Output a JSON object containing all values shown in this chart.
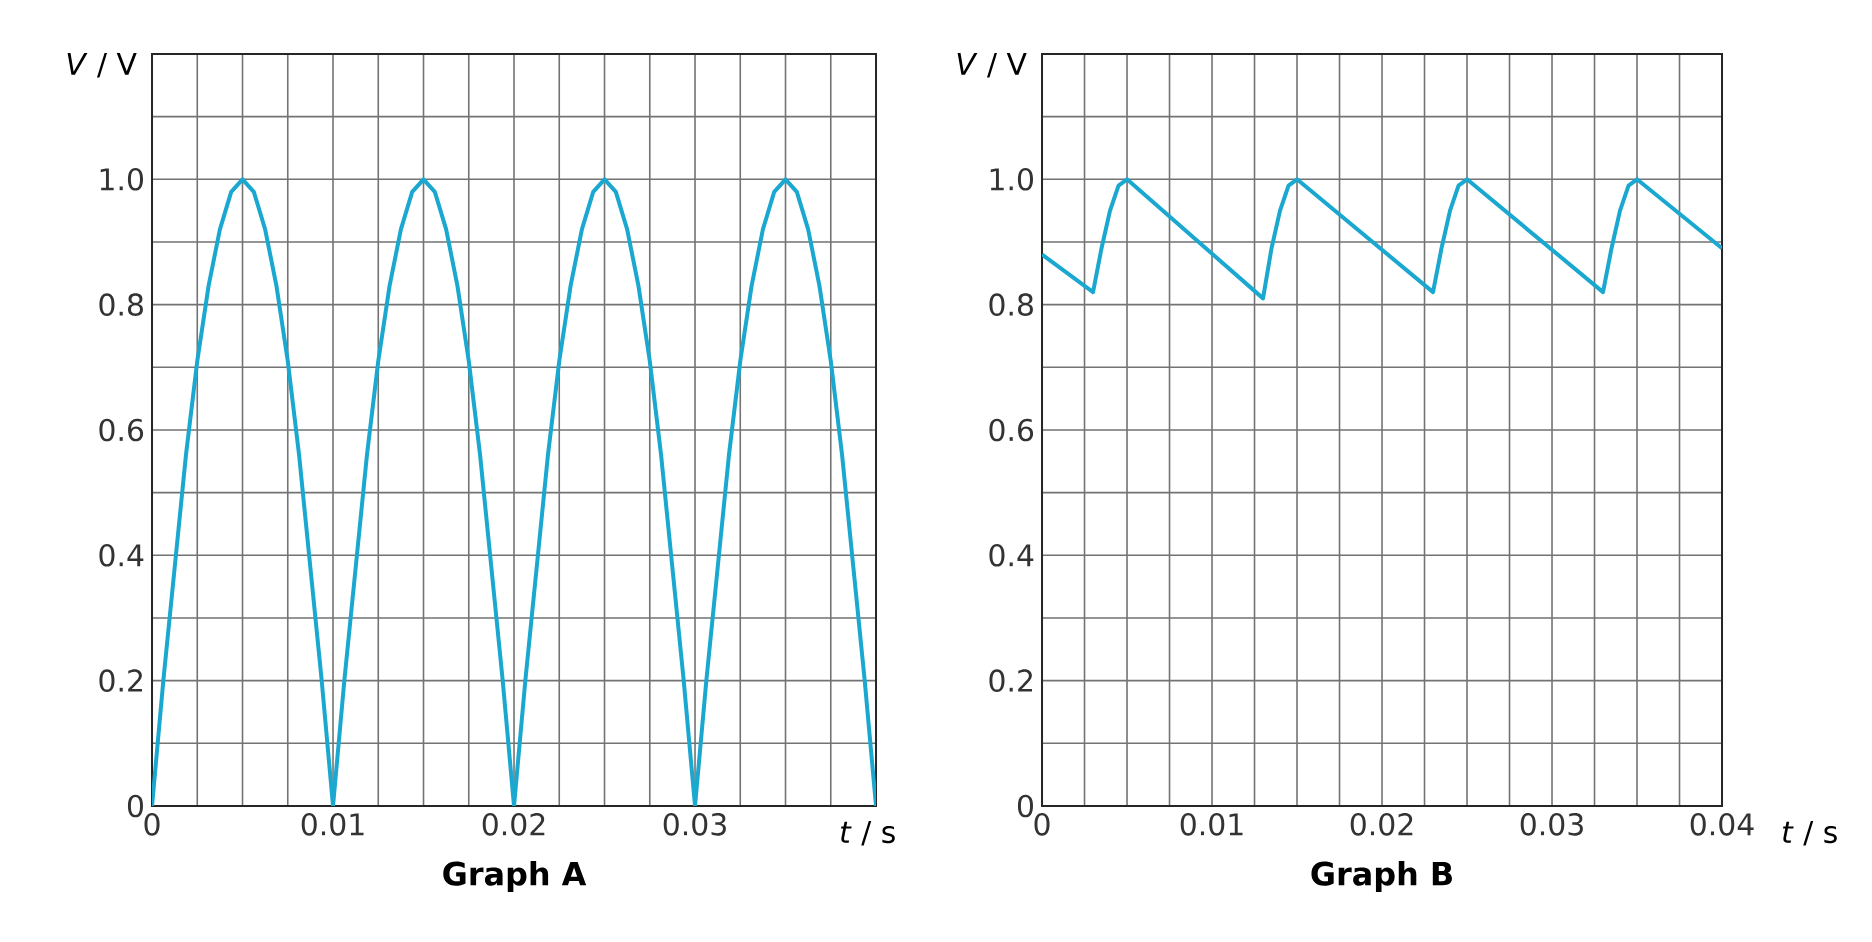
{
  "chart_data": [
    {
      "type": "line",
      "title": "Graph A",
      "xlabel": "*t* / s",
      "ylabel": "*V* / V",
      "color": "#1aa7d0",
      "grid": true,
      "xlim": [
        0,
        0.04
      ],
      "ylim": [
        0,
        1.2
      ],
      "xticks": [
        0,
        {
          "value": 0.0025,
          "label": null
        },
        {
          "value": 0.005,
          "label": null
        },
        {
          "value": 0.0075,
          "label": null
        },
        0.01,
        {
          "value": 0.0125,
          "label": null
        },
        {
          "value": 0.015,
          "label": null
        },
        {
          "value": 0.0175,
          "label": null
        },
        0.02,
        {
          "value": 0.0225,
          "label": null
        },
        {
          "value": 0.025,
          "label": null
        },
        {
          "value": 0.0275,
          "label": null
        },
        0.03,
        {
          "value": 0.0325,
          "label": null
        },
        {
          "value": 0.035,
          "label": null
        },
        {
          "value": 0.0375,
          "label": null
        }
      ],
      "yticks": [
        0,
        {
          "value": 0.1,
          "label": null
        },
        0.2,
        {
          "value": 0.3,
          "label": null
        },
        0.4,
        {
          "value": 0.5,
          "label": null
        },
        0.6,
        {
          "value": 0.7,
          "label": null
        },
        0.8,
        {
          "value": 0.9,
          "label": null
        },
        {
          "value": 1,
          "label": "1.0"
        },
        {
          "value": 1.1,
          "label": null
        }
      ],
      "x": [
        0,
        0.000625,
        0.00125,
        0.001875,
        0.0025,
        0.003125,
        0.00375,
        0.004375,
        0.005,
        0.005625,
        0.00625,
        0.006875,
        0.0075,
        0.008125,
        0.00875,
        0.009375,
        0.01,
        0.010625,
        0.01125,
        0.011875,
        0.0125,
        0.013125,
        0.01375,
        0.014375,
        0.015,
        0.015625,
        0.01625,
        0.016875,
        0.0175,
        0.018125,
        0.01875,
        0.019375,
        0.02,
        0.020625,
        0.02125,
        0.021875,
        0.0225,
        0.023125,
        0.02375,
        0.024375,
        0.025,
        0.025625,
        0.02625,
        0.026875,
        0.0275,
        0.028125,
        0.02875,
        0.029375,
        0.03,
        0.030625,
        0.03125,
        0.031875,
        0.0325,
        0.033125,
        0.03375,
        0.034375,
        0.035,
        0.035625,
        0.03625,
        0.036875,
        0.0375,
        0.038125,
        0.03875,
        0.039375,
        0.04
      ],
      "values": [
        0,
        0.2,
        0.38,
        0.56,
        0.71,
        0.83,
        0.92,
        0.98,
        1.0,
        0.98,
        0.92,
        0.83,
        0.71,
        0.56,
        0.38,
        0.2,
        0,
        0.2,
        0.38,
        0.56,
        0.71,
        0.83,
        0.92,
        0.98,
        1.0,
        0.98,
        0.92,
        0.83,
        0.71,
        0.56,
        0.38,
        0.2,
        0,
        0.2,
        0.38,
        0.56,
        0.71,
        0.83,
        0.92,
        0.98,
        1.0,
        0.98,
        0.92,
        0.83,
        0.71,
        0.56,
        0.38,
        0.2,
        0,
        0.2,
        0.38,
        0.56,
        0.71,
        0.83,
        0.92,
        0.98,
        1.0,
        0.98,
        0.92,
        0.83,
        0.71,
        0.56,
        0.38,
        0.2,
        0
      ]
    },
    {
      "type": "line",
      "title": "Graph B",
      "xlabel": "*t* / s",
      "ylabel": "*V* / V",
      "color": "#1aa7d0",
      "grid": true,
      "xlim": [
        0,
        0.04
      ],
      "ylim": [
        0,
        1.2
      ],
      "xticks": [
        0,
        {
          "value": 0.0025,
          "label": null
        },
        {
          "value": 0.005,
          "label": null
        },
        {
          "value": 0.0075,
          "label": null
        },
        0.01,
        {
          "value": 0.0125,
          "label": null
        },
        {
          "value": 0.015,
          "label": null
        },
        {
          "value": 0.0175,
          "label": null
        },
        0.02,
        {
          "value": 0.0225,
          "label": null
        },
        {
          "value": 0.025,
          "label": null
        },
        {
          "value": 0.0275,
          "label": null
        },
        0.03,
        {
          "value": 0.0325,
          "label": null
        },
        {
          "value": 0.035,
          "label": null
        },
        {
          "value": 0.0375,
          "label": null
        },
        0.04
      ],
      "yticks": [
        0,
        {
          "value": 0.1,
          "label": null
        },
        0.2,
        {
          "value": 0.3,
          "label": null
        },
        0.4,
        {
          "value": 0.5,
          "label": null
        },
        0.6,
        {
          "value": 0.7,
          "label": null
        },
        0.8,
        {
          "value": 0.9,
          "label": null
        },
        {
          "value": 1,
          "label": "1.0"
        },
        {
          "value": 1.1,
          "label": null
        }
      ],
      "x": [
        0,
        0.003,
        0.0035,
        0.004,
        0.0045,
        0.005,
        0.013,
        0.0135,
        0.014,
        0.0145,
        0.015,
        0.023,
        0.0235,
        0.024,
        0.0245,
        0.025,
        0.033,
        0.0335,
        0.034,
        0.0345,
        0.035,
        0.04
      ],
      "values": [
        0.88,
        0.82,
        0.89,
        0.95,
        0.99,
        1.0,
        0.81,
        0.89,
        0.95,
        0.99,
        1.0,
        0.82,
        0.89,
        0.95,
        0.99,
        1.0,
        0.82,
        0.89,
        0.95,
        0.99,
        1.0,
        0.89
      ]
    }
  ]
}
